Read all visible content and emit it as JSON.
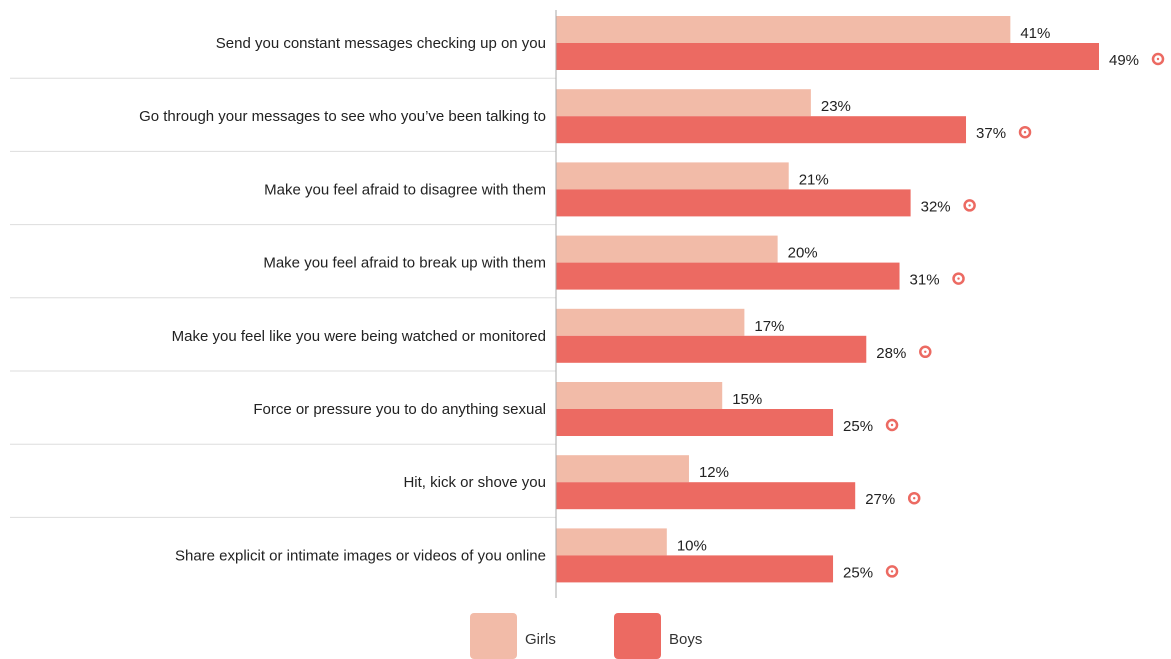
{
  "chart_data": {
    "type": "bar",
    "orientation": "horizontal",
    "categories": [
      "Send you constant messages checking up on you",
      "Go through your messages to see who you’ve been talking to",
      "Make you feel afraid to disagree with them",
      "Make you feel afraid to break up with them",
      "Make you feel like you were being watched or monitored",
      "Force or pressure you to do anything sexual",
      "Hit, kick or shove you",
      "Share explicit or intimate images or videos of you online"
    ],
    "series": [
      {
        "name": "Girls",
        "values": [
          41,
          23,
          21,
          20,
          17,
          15,
          12,
          10
        ],
        "labels": [
          "41%",
          "23%",
          "21%",
          "20%",
          "17%",
          "15%",
          "12%",
          "10%"
        ],
        "color": "#F2BBA8"
      },
      {
        "name": "Boys",
        "values": [
          49,
          37,
          32,
          31,
          28,
          25,
          27,
          25
        ],
        "labels": [
          "49%",
          "37%",
          "32%",
          "31%",
          "28%",
          "25%",
          "27%",
          "25%"
        ],
        "color": "#EC6A62",
        "marker": "circle-marker-icon"
      }
    ],
    "xlim": [
      0,
      50
    ],
    "grid": false,
    "gridlines": "horizontal separators between categories",
    "legend_position": "bottom",
    "title": "",
    "xlabel": "",
    "ylabel": ""
  },
  "colors": {
    "separator": "#DDDDDD",
    "axis": "#AAAAAA",
    "marker": "#EC6A62"
  }
}
